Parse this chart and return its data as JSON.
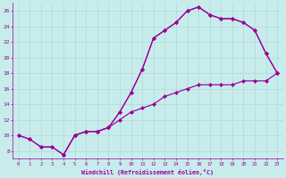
{
  "background_color": "#c8ecec",
  "grid_color": "#b0d8d8",
  "line_color": "#990099",
  "xlabel": "Windchill (Refroidissement éolien,°C)",
  "xlim": [
    -0.5,
    23.5
  ],
  "ylim": [
    7,
    27
  ],
  "yticks": [
    8,
    10,
    12,
    14,
    16,
    18,
    20,
    22,
    24,
    26
  ],
  "xticks": [
    0,
    1,
    2,
    3,
    4,
    5,
    6,
    7,
    8,
    9,
    10,
    11,
    12,
    13,
    14,
    15,
    16,
    17,
    18,
    19,
    20,
    21,
    22,
    23
  ],
  "curve1_x": [
    0,
    1,
    2,
    3,
    4,
    5,
    6,
    7,
    8,
    9,
    10,
    11,
    12,
    13,
    14,
    15,
    16,
    17,
    18,
    19,
    20,
    21,
    22,
    23
  ],
  "curve1_y": [
    10,
    9.5,
    8.5,
    8.5,
    7.5,
    10,
    10.5,
    10.5,
    11,
    13,
    15.5,
    18.5,
    22.5,
    23.5,
    24.5,
    26,
    26.5,
    25.5,
    25,
    25,
    24.5,
    23.5,
    20.5,
    18
  ],
  "curve2_x": [
    0,
    1,
    2,
    3,
    4,
    5,
    6,
    7,
    8,
    9,
    10,
    11,
    12,
    13,
    14,
    15,
    16,
    17,
    18,
    19,
    20,
    21,
    22,
    23
  ],
  "curve2_y": [
    10,
    9.5,
    8.5,
    8.5,
    7.5,
    10,
    10.5,
    10.5,
    11,
    12,
    13,
    13.5,
    14,
    15,
    15.5,
    16,
    16.5,
    16.5,
    16.5,
    16.5,
    17,
    17,
    17,
    18
  ],
  "curve3_x": [
    4,
    5,
    6,
    7,
    8,
    9,
    10,
    11,
    12,
    13,
    14,
    15,
    16,
    17,
    18,
    19,
    20,
    21,
    22,
    23
  ],
  "curve3_y": [
    7.5,
    10,
    10.5,
    10.5,
    11,
    13,
    15.5,
    18.5,
    22.5,
    23.5,
    24.5,
    26,
    26.5,
    25.5,
    25,
    25,
    24.5,
    23.5,
    20.5,
    18
  ]
}
